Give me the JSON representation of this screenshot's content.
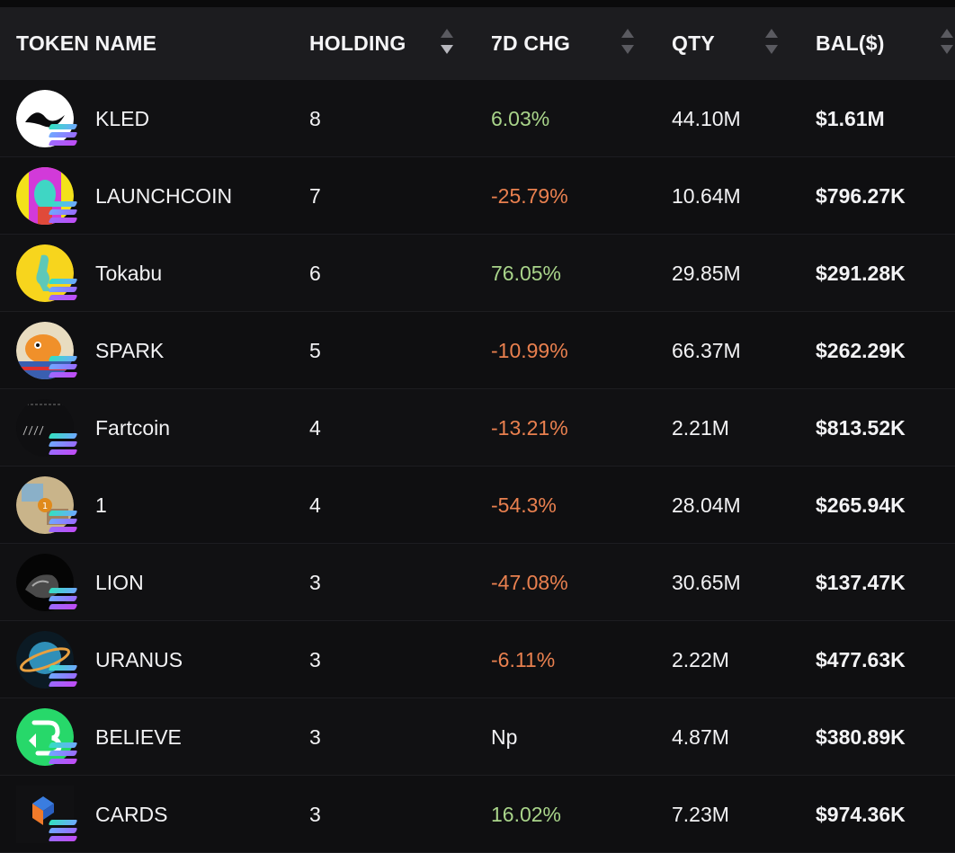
{
  "columns": {
    "token_name": "TOKEN NAME",
    "holding": "HOLDING",
    "change_7d": "7D CHG",
    "qty": "QTY",
    "balance": "BAL($)"
  },
  "colors": {
    "positive": "#a9d48a",
    "negative": "#e9804f",
    "header_bg": "#1c1c1f",
    "row_bg": "#111113"
  },
  "rows": [
    {
      "name": "KLED",
      "holding": "8",
      "change": "6.03%",
      "trend": "pos",
      "qty": "44.10M",
      "balance": "$1.61M",
      "icon": "kled-logo-icon"
    },
    {
      "name": "LAUNCHCOIN",
      "holding": "7",
      "change": "-25.79%",
      "trend": "neg",
      "qty": "10.64M",
      "balance": "$796.27K",
      "icon": "launchcoin-logo-icon"
    },
    {
      "name": "Tokabu",
      "holding": "6",
      "change": "76.05%",
      "trend": "pos",
      "qty": "29.85M",
      "balance": "$291.28K",
      "icon": "tokabu-logo-icon"
    },
    {
      "name": "SPARK",
      "holding": "5",
      "change": "-10.99%",
      "trend": "neg",
      "qty": "66.37M",
      "balance": "$262.29K",
      "icon": "spark-logo-icon"
    },
    {
      "name": "Fartcoin",
      "holding": "4",
      "change": "-13.21%",
      "trend": "neg",
      "qty": "2.21M",
      "balance": "$813.52K",
      "icon": "fartcoin-logo-icon"
    },
    {
      "name": "1",
      "holding": "4",
      "change": "-54.3%",
      "trend": "neg",
      "qty": "28.04M",
      "balance": "$265.94K",
      "icon": "one-logo-icon"
    },
    {
      "name": "LION",
      "holding": "3",
      "change": "-47.08%",
      "trend": "neg",
      "qty": "30.65M",
      "balance": "$137.47K",
      "icon": "lion-logo-icon"
    },
    {
      "name": "URANUS",
      "holding": "3",
      "change": "-6.11%",
      "trend": "neg",
      "qty": "2.22M",
      "balance": "$477.63K",
      "icon": "uranus-logo-icon"
    },
    {
      "name": "BELIEVE",
      "holding": "3",
      "change": "Np",
      "trend": "neutral",
      "qty": "4.87M",
      "balance": "$380.89K",
      "icon": "believe-logo-icon"
    },
    {
      "name": "CARDS",
      "holding": "3",
      "change": "16.02%",
      "trend": "pos",
      "qty": "7.23M",
      "balance": "$974.36K",
      "icon": "cards-logo-icon"
    }
  ]
}
